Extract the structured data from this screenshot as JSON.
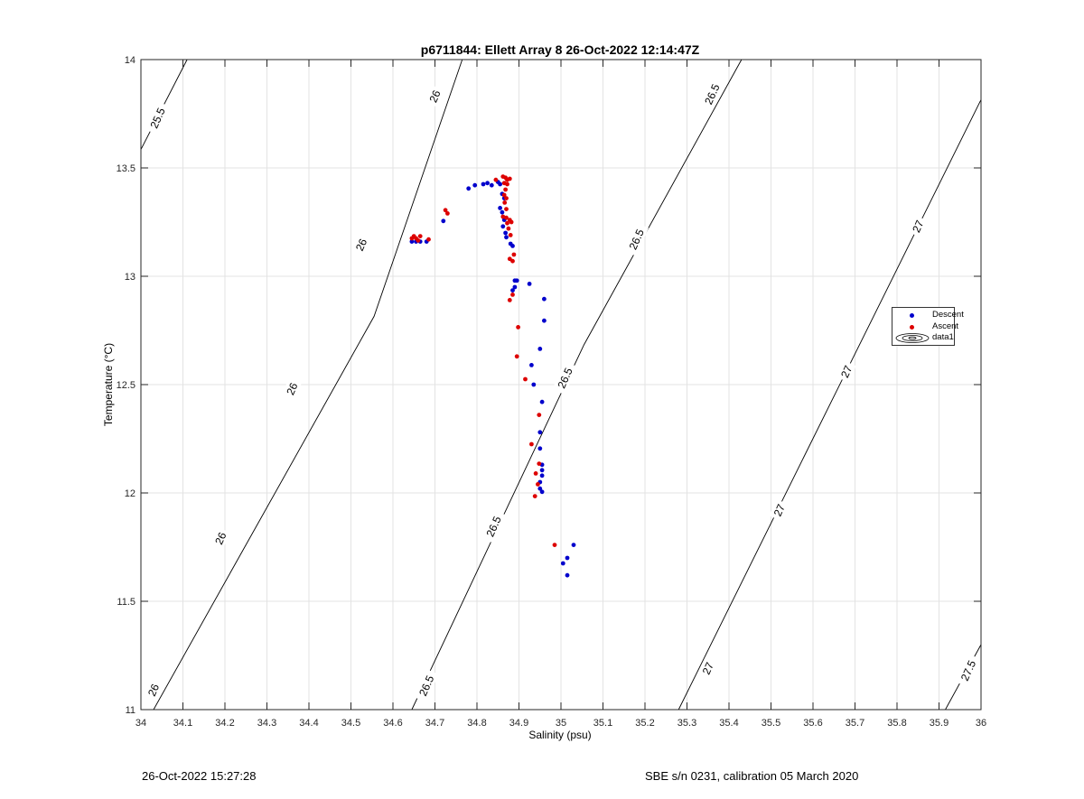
{
  "chart_data": {
    "type": "scatter",
    "title": "p6711844: Ellett Array 8 26-Oct-2022 12:14:47Z",
    "xlabel": "Salinity (psu)",
    "ylabel": "Temperature (°C)",
    "xlim": [
      34,
      36
    ],
    "ylim": [
      11,
      14
    ],
    "x_ticks": [
      "34",
      "34.1",
      "34.2",
      "34.3",
      "34.4",
      "34.5",
      "34.6",
      "34.7",
      "34.8",
      "34.9",
      "35",
      "35.1",
      "35.2",
      "35.3",
      "35.4",
      "35.5",
      "35.6",
      "35.7",
      "35.8",
      "35.9",
      "36"
    ],
    "y_ticks": [
      "11",
      "11.5",
      "12",
      "12.5",
      "13",
      "13.5",
      "14"
    ],
    "grid": true,
    "legend_position": "right",
    "legend": [
      "Descent",
      "Ascent",
      "data1"
    ],
    "series": [
      {
        "name": "Descent",
        "color": "#0000cc",
        "points": [
          [
            34.645,
            13.16
          ],
          [
            34.655,
            13.16
          ],
          [
            34.665,
            13.16
          ],
          [
            34.68,
            13.16
          ],
          [
            34.72,
            13.255
          ],
          [
            34.78,
            13.405
          ],
          [
            34.795,
            13.42
          ],
          [
            34.815,
            13.425
          ],
          [
            34.825,
            13.43
          ],
          [
            34.835,
            13.42
          ],
          [
            34.85,
            13.435
          ],
          [
            34.855,
            13.425
          ],
          [
            34.86,
            13.38
          ],
          [
            34.865,
            13.36
          ],
          [
            34.855,
            13.315
          ],
          [
            34.86,
            13.295
          ],
          [
            34.865,
            13.26
          ],
          [
            34.862,
            13.23
          ],
          [
            34.868,
            13.2
          ],
          [
            34.87,
            13.18
          ],
          [
            34.88,
            13.15
          ],
          [
            34.885,
            13.14
          ],
          [
            34.89,
            12.98
          ],
          [
            34.895,
            12.98
          ],
          [
            34.89,
            12.95
          ],
          [
            34.885,
            12.935
          ],
          [
            34.925,
            12.965
          ],
          [
            34.96,
            12.895
          ],
          [
            34.96,
            12.795
          ],
          [
            34.95,
            12.665
          ],
          [
            34.93,
            12.59
          ],
          [
            34.935,
            12.5
          ],
          [
            34.955,
            12.42
          ],
          [
            34.95,
            12.28
          ],
          [
            34.95,
            12.205
          ],
          [
            34.955,
            12.13
          ],
          [
            34.955,
            12.105
          ],
          [
            34.955,
            12.08
          ],
          [
            34.95,
            12.05
          ],
          [
            34.95,
            12.02
          ],
          [
            34.955,
            12.005
          ],
          [
            35.03,
            11.76
          ],
          [
            35.015,
            11.7
          ],
          [
            35.005,
            11.675
          ],
          [
            35.015,
            11.62
          ]
        ]
      },
      {
        "name": "Ascent",
        "color": "#dd0000",
        "points": [
          [
            34.645,
            13.175
          ],
          [
            34.65,
            13.185
          ],
          [
            34.655,
            13.175
          ],
          [
            34.66,
            13.165
          ],
          [
            34.665,
            13.185
          ],
          [
            34.685,
            13.17
          ],
          [
            34.725,
            13.305
          ],
          [
            34.73,
            13.29
          ],
          [
            34.845,
            13.445
          ],
          [
            34.862,
            13.46
          ],
          [
            34.868,
            13.455
          ],
          [
            34.872,
            13.445
          ],
          [
            34.878,
            13.45
          ],
          [
            34.865,
            13.43
          ],
          [
            34.872,
            13.425
          ],
          [
            34.868,
            13.4
          ],
          [
            34.865,
            13.375
          ],
          [
            34.87,
            13.36
          ],
          [
            34.866,
            13.34
          ],
          [
            34.87,
            13.31
          ],
          [
            34.862,
            13.275
          ],
          [
            34.87,
            13.27
          ],
          [
            34.878,
            13.26
          ],
          [
            34.872,
            13.245
          ],
          [
            34.882,
            13.25
          ],
          [
            34.875,
            13.22
          ],
          [
            34.88,
            13.19
          ],
          [
            34.888,
            13.1
          ],
          [
            34.878,
            13.08
          ],
          [
            34.885,
            13.07
          ],
          [
            34.885,
            12.915
          ],
          [
            34.878,
            12.89
          ],
          [
            34.898,
            12.765
          ],
          [
            34.895,
            12.63
          ],
          [
            34.915,
            12.525
          ],
          [
            34.948,
            12.36
          ],
          [
            34.93,
            12.225
          ],
          [
            34.948,
            12.135
          ],
          [
            34.94,
            12.09
          ],
          [
            34.945,
            12.04
          ],
          [
            34.938,
            11.985
          ],
          [
            34.985,
            11.76
          ]
        ]
      }
    ],
    "density_contours": {
      "color": "#000000",
      "lines": [
        {
          "level": "25.5",
          "points": [
            [
              34.0,
              13.585
            ],
            [
              34.11,
              14.0
            ]
          ]
        },
        {
          "level": "26",
          "points": [
            [
              34.03,
              11.0
            ],
            [
              34.555,
              12.815
            ],
            [
              34.765,
              14.0
            ]
          ]
        },
        {
          "level": "26.5",
          "points": [
            [
              34.645,
              11.0
            ],
            [
              35.055,
              12.685
            ],
            [
              35.43,
              14.0
            ]
          ]
        },
        {
          "level": "27",
          "points": [
            [
              35.28,
              11.0
            ],
            [
              35.665,
              12.505
            ],
            [
              36.0,
              13.815
            ]
          ]
        },
        {
          "level": "27.5",
          "points": [
            [
              35.915,
              11.0
            ],
            [
              36.0,
              11.3
            ]
          ]
        }
      ],
      "labels": [
        {
          "text": "25.5",
          "x": 34.04,
          "y": 13.73
        },
        {
          "text": "26",
          "x": 34.7,
          "y": 13.83
        },
        {
          "text": "26",
          "x": 34.525,
          "y": 13.145
        },
        {
          "text": "26",
          "x": 34.36,
          "y": 12.48
        },
        {
          "text": "26",
          "x": 34.19,
          "y": 11.79
        },
        {
          "text": "26",
          "x": 34.03,
          "y": 11.09
        },
        {
          "text": "26.5",
          "x": 35.36,
          "y": 13.84
        },
        {
          "text": "26.5",
          "x": 35.18,
          "y": 13.17
        },
        {
          "text": "26.5",
          "x": 35.01,
          "y": 12.53
        },
        {
          "text": "26.5",
          "x": 34.84,
          "y": 11.845
        },
        {
          "text": "26.5",
          "x": 34.68,
          "y": 11.11
        },
        {
          "text": "27",
          "x": 35.85,
          "y": 13.23
        },
        {
          "text": "27",
          "x": 35.68,
          "y": 12.56
        },
        {
          "text": "27",
          "x": 35.52,
          "y": 11.92
        },
        {
          "text": "27",
          "x": 35.35,
          "y": 11.19
        },
        {
          "text": "27.5",
          "x": 35.97,
          "y": 11.18
        }
      ]
    }
  },
  "footer": {
    "left": "26-Oct-2022 15:27:28",
    "right": "SBE s/n 0231, calibration 05 March 2020"
  }
}
